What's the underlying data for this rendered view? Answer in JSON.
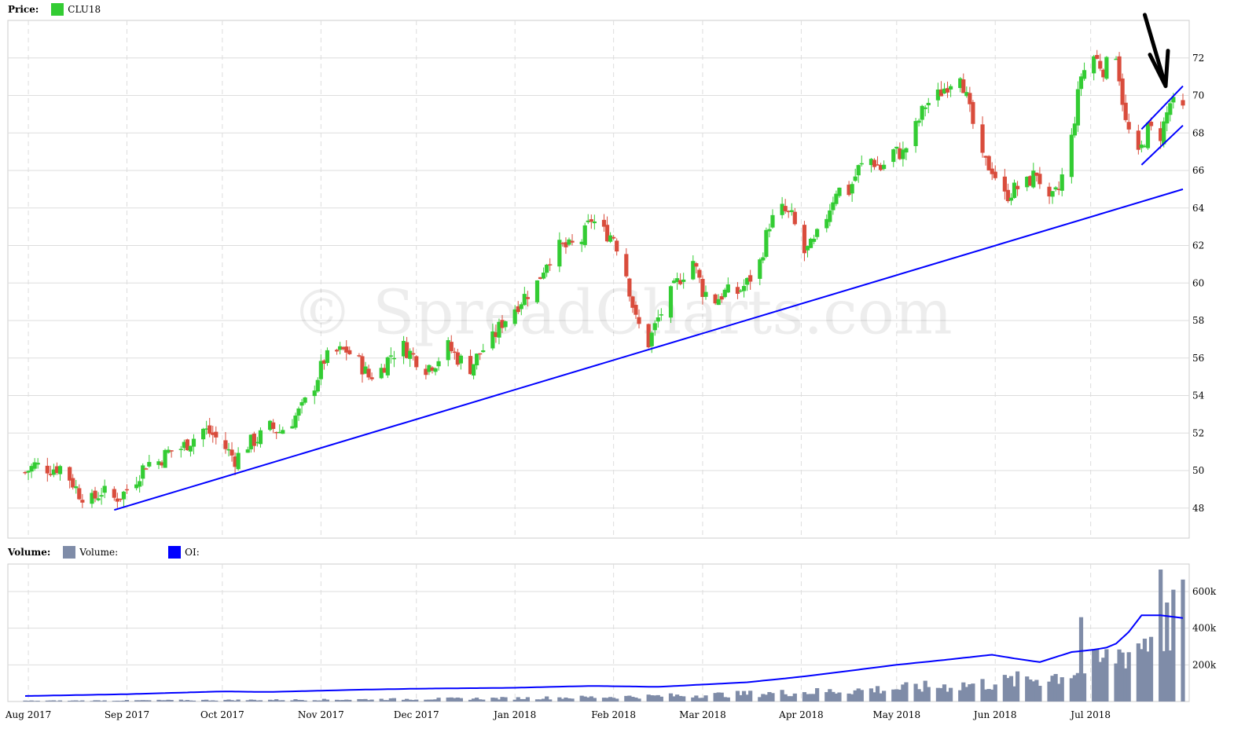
{
  "price_legend": {
    "label": "Price:",
    "series": "CLU18",
    "color": "#33cc33"
  },
  "volume_legend": {
    "label": "Volume:",
    "items": [
      {
        "name": "Volume:",
        "color": "#7f8ca8"
      },
      {
        "name": "OI:",
        "color": "#0000ff"
      }
    ]
  },
  "watermark": "© SpreadCharts.com",
  "colors": {
    "up": "#33cc33",
    "down": "#d94c3c",
    "trendline": "#0000ff",
    "volume": "#7f8ca8",
    "grid": "#dddddd",
    "arrow": "#000000"
  },
  "x_axis_labels": [
    "Aug 2017",
    "Sep 2017",
    "Oct 2017",
    "Nov 2017",
    "Dec 2017",
    "Jan 2018",
    "Feb 2018",
    "Mar 2018",
    "Apr 2018",
    "May 2018",
    "Jun 2018",
    "Jul 2018"
  ],
  "chart_data": [
    {
      "type": "candlestick",
      "series": "CLU18",
      "y_ticks": [
        48,
        50,
        52,
        54,
        56,
        58,
        60,
        62,
        64,
        66,
        68,
        70,
        72
      ],
      "ylim": [
        46.4,
        74
      ],
      "x_range": [
        "2017-07-31",
        "2018-07-30"
      ],
      "anchor_closes": [
        [
          "2017-07-31",
          49.9
        ],
        [
          "2017-08-03",
          50.3
        ],
        [
          "2017-08-08",
          50.1
        ],
        [
          "2017-08-11",
          50.2
        ],
        [
          "2017-08-14",
          49.6
        ],
        [
          "2017-08-17",
          48.8
        ],
        [
          "2017-08-21",
          48.4
        ],
        [
          "2017-08-24",
          48.9
        ],
        [
          "2017-08-28",
          48.5
        ],
        [
          "2017-08-31",
          48.8
        ],
        [
          "2017-09-04",
          49.6
        ],
        [
          "2017-09-07",
          50.4
        ],
        [
          "2017-09-11",
          50.5
        ],
        [
          "2017-09-14",
          51.0
        ],
        [
          "2017-09-18",
          51.2
        ],
        [
          "2017-09-21",
          51.6
        ],
        [
          "2017-09-25",
          52.2
        ],
        [
          "2017-09-28",
          51.9
        ],
        [
          "2017-10-02",
          51.2
        ],
        [
          "2017-10-05",
          50.6
        ],
        [
          "2017-10-09",
          51.4
        ],
        [
          "2017-10-12",
          51.7
        ],
        [
          "2017-10-16",
          52.3
        ],
        [
          "2017-10-19",
          52.1
        ],
        [
          "2017-10-23",
          52.7
        ],
        [
          "2017-10-26",
          53.3
        ],
        [
          "2017-10-30",
          54.6
        ],
        [
          "2017-11-02",
          55.9
        ],
        [
          "2017-11-06",
          56.3
        ],
        [
          "2017-11-09",
          56.4
        ],
        [
          "2017-11-13",
          55.8
        ],
        [
          "2017-11-16",
          55.0
        ],
        [
          "2017-11-20",
          55.4
        ],
        [
          "2017-11-23",
          56.2
        ],
        [
          "2017-11-27",
          56.6
        ],
        [
          "2017-11-30",
          56.1
        ],
        [
          "2017-12-04",
          55.5
        ],
        [
          "2017-12-07",
          55.8
        ],
        [
          "2017-12-11",
          56.6
        ],
        [
          "2017-12-14",
          56.0
        ],
        [
          "2017-12-18",
          55.5
        ],
        [
          "2017-12-21",
          56.3
        ],
        [
          "2017-12-25",
          57.0
        ],
        [
          "2017-12-28",
          57.9
        ],
        [
          "2018-01-01",
          58.7
        ],
        [
          "2018-01-04",
          59.3
        ],
        [
          "2018-01-08",
          60.0
        ],
        [
          "2018-01-11",
          61.2
        ],
        [
          "2018-01-15",
          61.9
        ],
        [
          "2018-01-18",
          61.9
        ],
        [
          "2018-01-22",
          62.3
        ],
        [
          "2018-01-25",
          63.4
        ],
        [
          "2018-01-29",
          62.7
        ],
        [
          "2018-02-01",
          62.5
        ],
        [
          "2018-02-05",
          60.5
        ],
        [
          "2018-02-08",
          58.0
        ],
        [
          "2018-02-12",
          56.8
        ],
        [
          "2018-02-15",
          58.1
        ],
        [
          "2018-02-19",
          59.4
        ],
        [
          "2018-02-22",
          60.3
        ],
        [
          "2018-02-26",
          61.2
        ],
        [
          "2018-03-01",
          59.6
        ],
        [
          "2018-03-05",
          59.1
        ],
        [
          "2018-03-08",
          59.5
        ],
        [
          "2018-03-12",
          59.5
        ],
        [
          "2018-03-15",
          60.0
        ],
        [
          "2018-03-19",
          61.1
        ],
        [
          "2018-03-22",
          63.2
        ],
        [
          "2018-03-26",
          63.9
        ],
        [
          "2018-03-29",
          63.5
        ],
        [
          "2018-04-02",
          61.6
        ],
        [
          "2018-04-05",
          62.1
        ],
        [
          "2018-04-09",
          63.6
        ],
        [
          "2018-04-12",
          65.0
        ],
        [
          "2018-04-16",
          64.9
        ],
        [
          "2018-04-19",
          66.1
        ],
        [
          "2018-04-23",
          66.6
        ],
        [
          "2018-04-26",
          66.1
        ],
        [
          "2018-04-30",
          67.0
        ],
        [
          "2018-05-03",
          66.9
        ],
        [
          "2018-05-07",
          68.3
        ],
        [
          "2018-05-10",
          69.5
        ],
        [
          "2018-05-14",
          70.0
        ],
        [
          "2018-05-17",
          70.6
        ],
        [
          "2018-05-21",
          71.3
        ],
        [
          "2018-05-24",
          69.1
        ],
        [
          "2018-05-28",
          66.5
        ],
        [
          "2018-05-31",
          66.1
        ],
        [
          "2018-06-04",
          64.6
        ],
        [
          "2018-06-07",
          65.0
        ],
        [
          "2018-06-11",
          65.3
        ],
        [
          "2018-06-14",
          65.9
        ],
        [
          "2018-06-18",
          64.2
        ],
        [
          "2018-06-21",
          65.0
        ],
        [
          "2018-06-25",
          67.7
        ],
        [
          "2018-06-28",
          71.1
        ],
        [
          "2018-07-02",
          72.1
        ],
        [
          "2018-07-05",
          71.4
        ],
        [
          "2018-07-09",
          72.3
        ],
        [
          "2018-07-12",
          68.5
        ],
        [
          "2018-07-16",
          66.7
        ],
        [
          "2018-07-19",
          68.2
        ],
        [
          "2018-07-23",
          67.9
        ],
        [
          "2018-07-26",
          69.6
        ],
        [
          "2018-07-30",
          69.2
        ]
      ],
      "trendlines": [
        {
          "from": [
            "2017-08-28",
            47.9
          ],
          "to": [
            "2018-07-30",
            65.0
          ]
        },
        {
          "from": [
            "2018-07-17",
            66.3
          ],
          "to": [
            "2018-07-30",
            68.4
          ]
        },
        {
          "from": [
            "2018-07-17",
            68.2
          ],
          "to": [
            "2018-07-30",
            70.5
          ]
        }
      ],
      "annotation": {
        "type": "arrow",
        "target": [
          "2018-07-30",
          70.5
        ],
        "from_date": "2018-07-18",
        "from_price": 74.3
      }
    },
    {
      "type": "bar+line",
      "series": [
        {
          "name": "Volume",
          "kind": "bar"
        },
        {
          "name": "OI",
          "kind": "line"
        }
      ],
      "y_ticks": [
        200000,
        400000,
        600000
      ],
      "y_tick_labels": [
        "200k",
        "400k",
        "600k"
      ],
      "ylim": [
        0,
        750000
      ],
      "oi_anchors": [
        [
          "2017-07-31",
          30000
        ],
        [
          "2017-09-01",
          40000
        ],
        [
          "2017-10-01",
          55000
        ],
        [
          "2017-10-15",
          52000
        ],
        [
          "2017-11-15",
          65000
        ],
        [
          "2017-12-01",
          70000
        ],
        [
          "2018-01-01",
          75000
        ],
        [
          "2018-01-25",
          85000
        ],
        [
          "2018-02-15",
          80000
        ],
        [
          "2018-03-15",
          105000
        ],
        [
          "2018-04-01",
          135000
        ],
        [
          "2018-04-15",
          165000
        ],
        [
          "2018-05-01",
          200000
        ],
        [
          "2018-05-15",
          225000
        ],
        [
          "2018-05-31",
          255000
        ],
        [
          "2018-06-07",
          235000
        ],
        [
          "2018-06-15",
          215000
        ],
        [
          "2018-06-25",
          270000
        ],
        [
          "2018-07-01",
          280000
        ],
        [
          "2018-07-08",
          300000
        ],
        [
          "2018-07-13",
          380000
        ],
        [
          "2018-07-17",
          470000
        ],
        [
          "2018-07-23",
          470000
        ],
        [
          "2018-07-30",
          455000
        ]
      ],
      "volume_anchors": [
        [
          "2017-07-31",
          4000
        ],
        [
          "2017-09-01",
          6000
        ],
        [
          "2017-11-01",
          10000
        ],
        [
          "2017-12-01",
          14000
        ],
        [
          "2018-01-01",
          18000
        ],
        [
          "2018-02-01",
          25000
        ],
        [
          "2018-03-01",
          35000
        ],
        [
          "2018-04-01",
          50000
        ],
        [
          "2018-05-01",
          70000
        ],
        [
          "2018-06-01",
          100000
        ],
        [
          "2018-06-20",
          140000
        ],
        [
          "2018-07-01",
          190000
        ],
        [
          "2018-07-15",
          300000
        ],
        [
          "2018-07-30",
          470000
        ]
      ],
      "volume_spikes": [
        [
          "2018-06-28",
          460000
        ],
        [
          "2018-07-23",
          720000
        ],
        [
          "2018-07-25",
          540000
        ],
        [
          "2018-07-27",
          610000
        ]
      ]
    }
  ]
}
